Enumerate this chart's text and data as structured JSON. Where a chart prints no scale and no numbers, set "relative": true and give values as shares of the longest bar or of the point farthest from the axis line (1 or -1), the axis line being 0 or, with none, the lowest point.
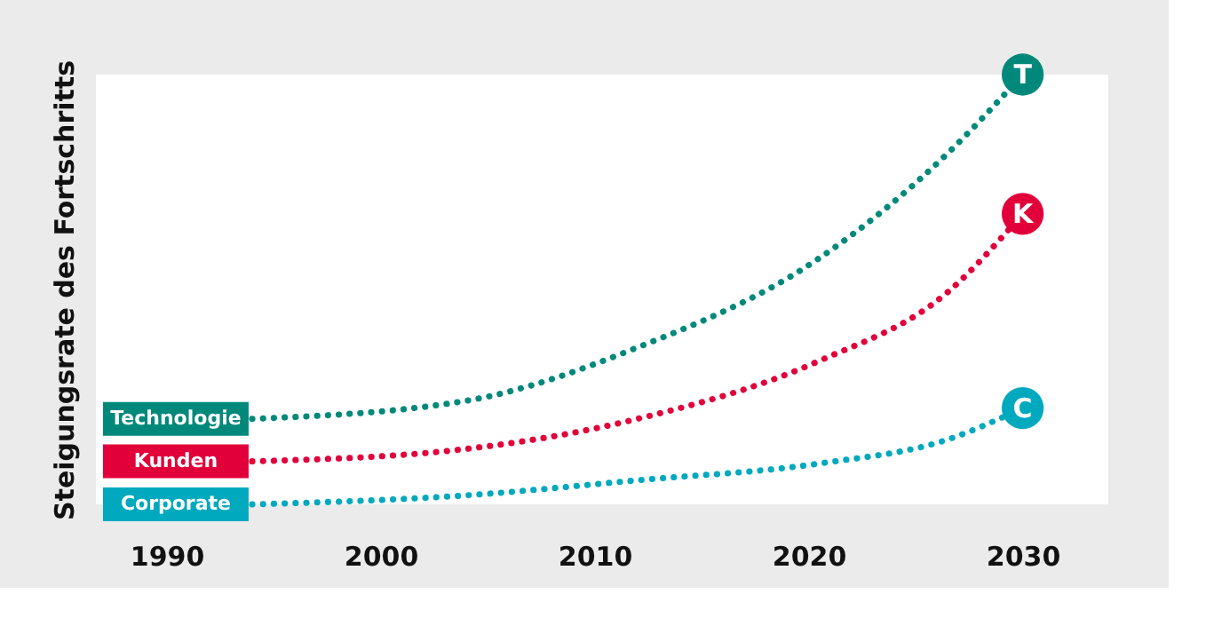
{
  "chart_data": {
    "type": "line",
    "ylabel": "Steigungsrate des Fortschritts",
    "relative": true,
    "x": [
      1994,
      2004,
      2012,
      2020.5,
      2026.5,
      2030
    ],
    "xlim": [
      1986.7,
      2034
    ],
    "xticks": [
      1990,
      2000,
      2010,
      2020,
      2030
    ],
    "series": [
      {
        "name": "Technologie",
        "color": "#00897b",
        "values": [
          0.199,
          0.241,
          0.365,
          0.573,
          0.817,
          1
        ]
      },
      {
        "name": "Kunden",
        "color": "#e2003a",
        "values": [
          0.1,
          0.129,
          0.199,
          0.334,
          0.494,
          0.676
        ]
      },
      {
        "name": "Corporate",
        "color": "#00a9bd",
        "values": [
          0,
          0.021,
          0.056,
          0.095,
          0.151,
          0.224
        ]
      }
    ],
    "annotations": [
      "T",
      "K",
      "C"
    ],
    "line_style": "dotted",
    "tick_labels": "x"
  }
}
